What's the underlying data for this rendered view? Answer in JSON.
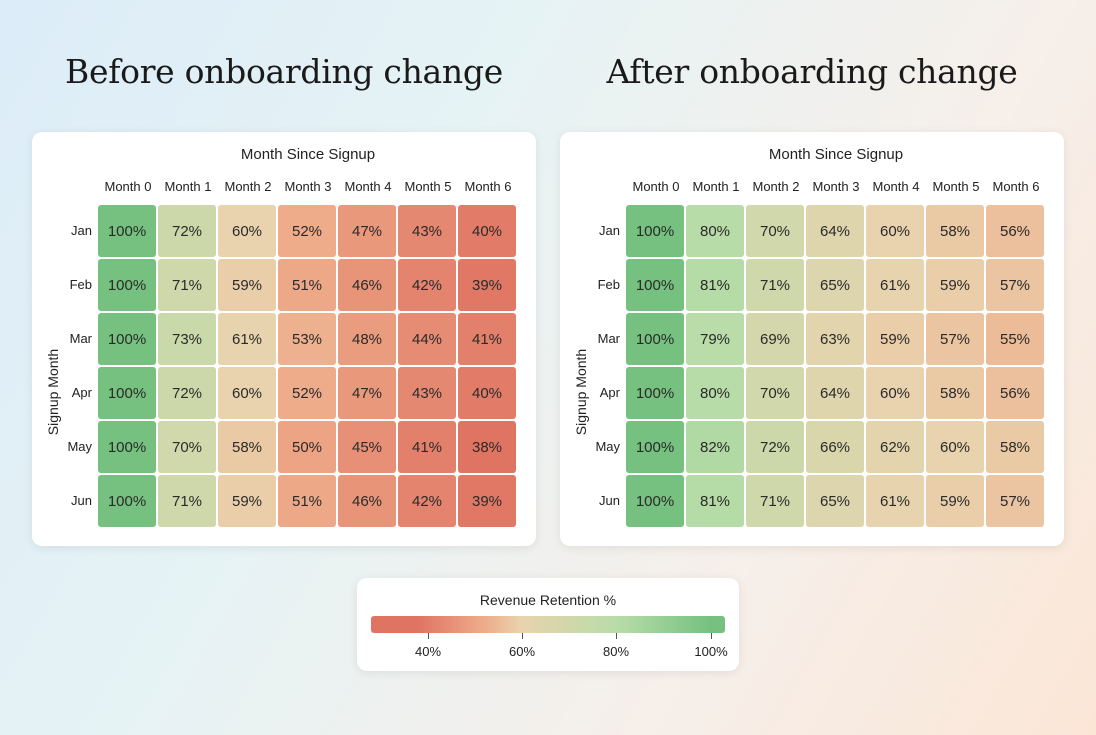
{
  "chart_data": [
    {
      "type": "heatmap",
      "title": "Before onboarding change",
      "xlabel": "Month Since Signup",
      "ylabel": "Signup Month",
      "x": [
        "Month 0",
        "Month 1",
        "Month 2",
        "Month 3",
        "Month 4",
        "Month 5",
        "Month 6"
      ],
      "y": [
        "Jan",
        "Feb",
        "Mar",
        "Apr",
        "May",
        "Jun"
      ],
      "values": [
        [
          100,
          72,
          60,
          52,
          47,
          43,
          40
        ],
        [
          100,
          71,
          59,
          51,
          46,
          42,
          39
        ],
        [
          100,
          73,
          61,
          53,
          48,
          44,
          41
        ],
        [
          100,
          72,
          60,
          52,
          47,
          43,
          40
        ],
        [
          100,
          70,
          58,
          50,
          45,
          41,
          38
        ],
        [
          100,
          71,
          59,
          51,
          46,
          42,
          39
        ]
      ],
      "value_suffix": "%"
    },
    {
      "type": "heatmap",
      "title": "After onboarding change",
      "xlabel": "Month Since Signup",
      "ylabel": "Signup Month",
      "x": [
        "Month 0",
        "Month 1",
        "Month 2",
        "Month 3",
        "Month 4",
        "Month 5",
        "Month 6"
      ],
      "y": [
        "Jan",
        "Feb",
        "Mar",
        "Apr",
        "May",
        "Jun"
      ],
      "values": [
        [
          100,
          80,
          70,
          64,
          60,
          58,
          56
        ],
        [
          100,
          81,
          71,
          65,
          61,
          59,
          57
        ],
        [
          100,
          79,
          69,
          63,
          59,
          57,
          55
        ],
        [
          100,
          80,
          70,
          64,
          60,
          58,
          56
        ],
        [
          100,
          82,
          72,
          66,
          62,
          60,
          58
        ],
        [
          100,
          81,
          71,
          65,
          61,
          59,
          57
        ]
      ],
      "value_suffix": "%"
    }
  ],
  "legend": {
    "title": "Revenue Retention %",
    "ticks": [
      "40%",
      "60%",
      "80%",
      "100%"
    ],
    "tick_values": [
      40,
      60,
      80,
      100
    ],
    "range": [
      28,
      103
    ],
    "colors": {
      "low": "#e07463",
      "mid_low": "#eeac8a",
      "mid": "#e9d3ae",
      "mid_high": "#b8dca8",
      "high": "#76c17f"
    }
  }
}
